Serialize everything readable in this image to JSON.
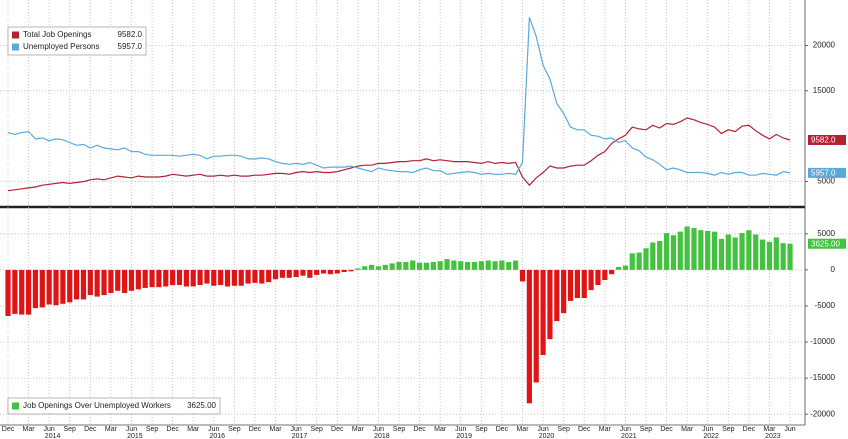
{
  "chart_data": [
    {
      "type": "line",
      "ylim": [
        2200,
        25000
      ],
      "yticks": [
        5000,
        15000,
        20000
      ],
      "grid": true,
      "series": [
        {
          "name": "Total Job Openings",
          "color": "#b22233",
          "values": [
            4000,
            4100,
            4200,
            4300,
            4400,
            4600,
            4700,
            4800,
            4900,
            4800,
            4900,
            5000,
            5200,
            5300,
            5200,
            5400,
            5600,
            5500,
            5400,
            5600,
            5500,
            5500,
            5500,
            5600,
            5800,
            5700,
            5600,
            5700,
            5800,
            5600,
            5600,
            5700,
            5600,
            5700,
            5600,
            5600,
            5700,
            5700,
            5800,
            5900,
            5900,
            5800,
            6000,
            6100,
            6000,
            6100,
            6000,
            6000,
            6100,
            6300,
            6500,
            6700,
            6800,
            6800,
            7000,
            7000,
            7100,
            7200,
            7200,
            7300,
            7300,
            7500,
            7300,
            7400,
            7300,
            7200,
            7200,
            7200,
            7100,
            7000,
            7200,
            7000,
            7100,
            7000,
            7100,
            5500,
            4600,
            5400,
            6000,
            6700,
            6500,
            6500,
            6700,
            6800,
            6800,
            7300,
            7900,
            8300,
            9200,
            9700,
            10100,
            11000,
            10800,
            10700,
            11200,
            10900,
            11400,
            11300,
            11600,
            12000,
            11800,
            11500,
            11300,
            11000,
            10300,
            10700,
            10500,
            11100,
            11200,
            10600,
            10100,
            9700,
            10200,
            9800,
            9582
          ],
          "value_labels": [
            null,
            null,
            null,
            null,
            null,
            null,
            null,
            null,
            null,
            null,
            null,
            null,
            null,
            null,
            null,
            null,
            null,
            null,
            null,
            null,
            null,
            null,
            null,
            null,
            null,
            null,
            null,
            null,
            null,
            null,
            null,
            null,
            null,
            null,
            null,
            null,
            null,
            null,
            null,
            null,
            null,
            null,
            null,
            null,
            null,
            null,
            null,
            null,
            null,
            null,
            null,
            null,
            null,
            null,
            null,
            null,
            null,
            null,
            null,
            null,
            null,
            null,
            null,
            null,
            null,
            null,
            null,
            null,
            null,
            null,
            null,
            null,
            null,
            null,
            null,
            null,
            null,
            null,
            null,
            null,
            null,
            null,
            null,
            null,
            null,
            null,
            null,
            null,
            null,
            null,
            null,
            null,
            null,
            null,
            null,
            null,
            null,
            null,
            null,
            null,
            null,
            null,
            null,
            null,
            null,
            null,
            null,
            null,
            null,
            null,
            null,
            null,
            null,
            null,
            "9582.0"
          ]
        },
        {
          "name": "Unemployed Persons",
          "color": "#5aa9dc",
          "values": [
            10400,
            10200,
            10400,
            10500,
            9700,
            9800,
            9500,
            9700,
            9600,
            9300,
            9000,
            9100,
            8700,
            9000,
            8700,
            8600,
            8500,
            8700,
            8300,
            8300,
            8000,
            7900,
            7900,
            7900,
            7900,
            7800,
            7900,
            8000,
            7900,
            7500,
            7800,
            7800,
            7900,
            7900,
            7800,
            7500,
            7500,
            7600,
            7500,
            7200,
            7000,
            6900,
            7000,
            6900,
            7100,
            6800,
            6500,
            6600,
            6600,
            6600,
            6700,
            6500,
            6300,
            6100,
            6500,
            6300,
            6200,
            6100,
            6100,
            6000,
            6300,
            6500,
            6200,
            6200,
            5800,
            5900,
            6000,
            6100,
            6000,
            5800,
            5900,
            5800,
            5800,
            5900,
            5800,
            7100,
            23100,
            21000,
            17800,
            16300,
            13600,
            12500,
            11000,
            10700,
            10700,
            10100,
            10000,
            9700,
            9800,
            9300,
            9500,
            8700,
            8400,
            7700,
            7400,
            6900,
            6300,
            6500,
            6300,
            6000,
            6000,
            6000,
            5900,
            5700,
            6000,
            5800,
            6000,
            6000,
            5700,
            5700,
            5900,
            5800,
            5700,
            6100,
            5957
          ],
          "value_labels": [
            null,
            null,
            null,
            null,
            null,
            null,
            null,
            null,
            null,
            null,
            null,
            null,
            null,
            null,
            null,
            null,
            null,
            null,
            null,
            null,
            null,
            null,
            null,
            null,
            null,
            null,
            null,
            null,
            null,
            null,
            null,
            null,
            null,
            null,
            null,
            null,
            null,
            null,
            null,
            null,
            null,
            null,
            null,
            null,
            null,
            null,
            null,
            null,
            null,
            null,
            null,
            null,
            null,
            null,
            null,
            null,
            null,
            null,
            null,
            null,
            null,
            null,
            null,
            null,
            null,
            null,
            null,
            null,
            null,
            null,
            null,
            null,
            null,
            null,
            null,
            null,
            null,
            null,
            null,
            null,
            null,
            null,
            null,
            null,
            null,
            null,
            null,
            null,
            null,
            null,
            null,
            null,
            null,
            null,
            null,
            null,
            null,
            null,
            null,
            null,
            null,
            null,
            null,
            null,
            null,
            null,
            null,
            null,
            null,
            null,
            null,
            null,
            null,
            null,
            "5957.0"
          ]
        }
      ]
    },
    {
      "type": "bar",
      "ylim": [
        -21500,
        8300
      ],
      "yticks": [
        5000,
        0,
        -5000,
        -10000,
        -15000,
        -20000
      ],
      "grid": true,
      "categories": [
        "Dec",
        null,
        null,
        "Mar",
        null,
        null,
        "Jun",
        null,
        null,
        "Sep",
        null,
        null,
        "Dec",
        null,
        null,
        "Mar",
        null,
        null,
        "Jun",
        null,
        null,
        "Sep",
        null,
        null,
        "Dec",
        null,
        null,
        "Mar",
        null,
        null,
        "Jun",
        null,
        null,
        "Sep",
        null,
        null,
        "Dec",
        null,
        null,
        "Mar",
        null,
        null,
        "Jun",
        null,
        null,
        "Sep",
        null,
        null,
        "Dec",
        null,
        null,
        "Mar",
        null,
        null,
        "Jun",
        null,
        null,
        "Sep",
        null,
        null,
        "Dec",
        null,
        null,
        "Mar",
        null,
        null,
        "Jun",
        null,
        null,
        "Sep",
        null,
        null,
        "Dec",
        null,
        null,
        "Mar",
        null,
        null,
        "Jun",
        null,
        null,
        "Sep",
        null,
        null,
        "Dec",
        null,
        null,
        "Mar",
        null,
        null,
        "Jun",
        null,
        null,
        "Sep",
        null,
        null,
        "Dec",
        null,
        null,
        "Mar",
        null,
        null,
        "Jun",
        null,
        null,
        "Sep",
        null,
        null,
        "Dec",
        null,
        null,
        "Mar",
        null,
        null,
        "Jun"
      ],
      "years": [
        "2014",
        "2015",
        "2016",
        "2017",
        "2018",
        "2019",
        "2020",
        "2021",
        "2022",
        "2023"
      ],
      "series": [
        {
          "name": "Job Openings Over Unemployed Workers",
          "color": "#44c23f",
          "negative_color": "#e01414",
          "values": [
            -6400,
            -6100,
            -6200,
            -6200,
            -5300,
            -5200,
            -4800,
            -4900,
            -4700,
            -4500,
            -4100,
            -4100,
            -3500,
            -3700,
            -3500,
            -3200,
            -2900,
            -3200,
            -2900,
            -2700,
            -2500,
            -2400,
            -2400,
            -2300,
            -2100,
            -2100,
            -2300,
            -2300,
            -2100,
            -1900,
            -2200,
            -2100,
            -2300,
            -2200,
            -2200,
            -1900,
            -1800,
            -1900,
            -1700,
            -1300,
            -1100,
            -1100,
            -1000,
            -800,
            -1100,
            -700,
            -500,
            -600,
            -500,
            -300,
            -200,
            200,
            500,
            700,
            500,
            700,
            900,
            1100,
            1100,
            1300,
            1000,
            1000,
            1100,
            1200,
            1500,
            1300,
            1200,
            1100,
            1100,
            1200,
            1300,
            1200,
            1300,
            1100,
            1300,
            -1600,
            -18500,
            -15600,
            -11800,
            -9600,
            -7100,
            -6000,
            -4300,
            -3900,
            -3900,
            -2800,
            -2100,
            -1400,
            -600,
            400,
            600,
            2300,
            2400,
            3000,
            3800,
            4000,
            5100,
            4800,
            5300,
            6000,
            5800,
            5500,
            5400,
            5300,
            4300,
            4900,
            4500,
            5100,
            5500,
            4900,
            4200,
            3900,
            4500,
            3700,
            3625
          ],
          "value_labels": [
            null,
            null,
            null,
            null,
            null,
            null,
            null,
            null,
            null,
            null,
            null,
            null,
            null,
            null,
            null,
            null,
            null,
            null,
            null,
            null,
            null,
            null,
            null,
            null,
            null,
            null,
            null,
            null,
            null,
            null,
            null,
            null,
            null,
            null,
            null,
            null,
            null,
            null,
            null,
            null,
            null,
            null,
            null,
            null,
            null,
            null,
            null,
            null,
            null,
            null,
            null,
            null,
            null,
            null,
            null,
            null,
            null,
            null,
            null,
            null,
            null,
            null,
            null,
            null,
            null,
            null,
            null,
            null,
            null,
            null,
            null,
            null,
            null,
            null,
            null,
            null,
            null,
            null,
            null,
            null,
            null,
            null,
            null,
            null,
            null,
            null,
            null,
            null,
            null,
            null,
            null,
            null,
            null,
            null,
            null,
            null,
            null,
            null,
            null,
            null,
            null,
            null,
            null,
            null,
            null,
            null,
            null,
            null,
            null,
            null,
            null,
            null,
            null,
            null,
            "3625.00"
          ]
        }
      ]
    }
  ]
}
